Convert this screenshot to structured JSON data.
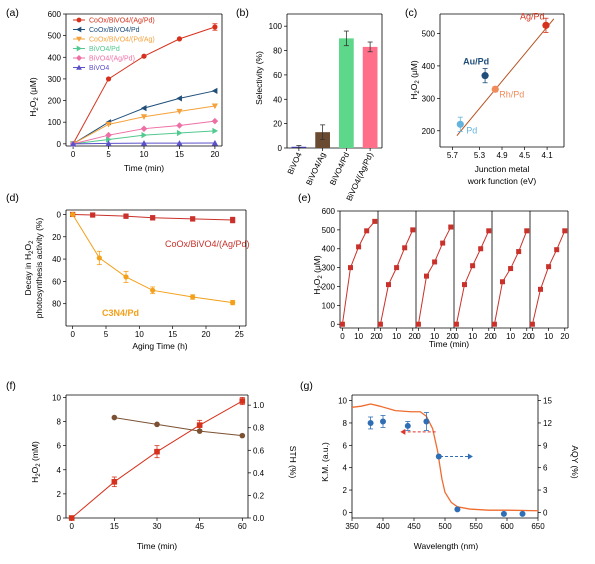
{
  "chart_data": [
    {
      "panel": "(a)",
      "type": "line",
      "xlabel": "Time (min)",
      "ylabel": "H2O2 (μM)",
      "xlim": [
        -1,
        21
      ],
      "ylim": [
        -10,
        600
      ],
      "xticks": [
        0,
        5,
        10,
        15,
        20
      ],
      "yticks": [
        0,
        100,
        200,
        300,
        400,
        500,
        600
      ],
      "legend_position": "top-left",
      "x": [
        0,
        5,
        10,
        15,
        20
      ],
      "series": [
        {
          "name": "CoOx/BiVO4/(Ag/Pd)",
          "values": [
            0,
            300,
            405,
            485,
            540
          ],
          "color": "#d6311c",
          "marker": "circle"
        },
        {
          "name": "CoOx/BiVO4/Pd",
          "values": [
            0,
            100,
            165,
            210,
            245
          ],
          "color": "#1f4e79",
          "marker": "triangle-left"
        },
        {
          "name": "CoOx/BiVO4/(Pd/Ag)",
          "values": [
            0,
            90,
            125,
            150,
            175
          ],
          "color": "#f4a23b",
          "marker": "triangle-down"
        },
        {
          "name": "BiVO4/Pd",
          "values": [
            0,
            20,
            40,
            50,
            60
          ],
          "color": "#52c98e",
          "marker": "triangle-right"
        },
        {
          "name": "BiVO4/(Ag/Pd)",
          "values": [
            0,
            40,
            70,
            85,
            105
          ],
          "color": "#ee6fa5",
          "marker": "diamond"
        },
        {
          "name": "BiVO4",
          "values": [
            0,
            2,
            3,
            3,
            4
          ],
          "color": "#5b52c9",
          "marker": "triangle-up"
        }
      ]
    },
    {
      "panel": "(b)",
      "type": "bar",
      "ylabel": "Selectivity (%)",
      "ylim": [
        0,
        110
      ],
      "yticks": [
        0,
        20,
        40,
        60,
        80,
        100
      ],
      "categories": [
        "BiVO4",
        "BiVO4/Ag",
        "BiVO4/Pd",
        "BiVO4/(Ag/Pd)"
      ],
      "values": [
        1,
        13,
        90,
        83
      ],
      "errors": [
        1,
        6,
        6,
        4
      ],
      "colors": [
        "#3a36a0",
        "#6b4a32",
        "#5dd78a",
        "#ff6f8a"
      ]
    },
    {
      "panel": "(c)",
      "type": "scatter",
      "xlabel": "Junction metal\nwork function (eV)",
      "ylabel": "H2O2 (μM)",
      "xlim": [
        4.15,
        5.25
      ],
      "ylim": [
        150,
        560
      ],
      "xticks": [
        4.26,
        4.5,
        4.7,
        4.9,
        5.1
      ],
      "xticklabels": [
        "5.7",
        "5.3",
        "4.9",
        "4.5",
        "4.1"
      ],
      "yticks": [
        200,
        300,
        400,
        500
      ],
      "points": [
        {
          "label": "Ag/Pd",
          "x": 5.09,
          "y": 525,
          "err": 22,
          "color": "#d6311c"
        },
        {
          "label": "Au/Pd",
          "x": 4.55,
          "y": 370,
          "err": 22,
          "color": "#1f4e79"
        },
        {
          "label": "Rh/Pd",
          "x": 4.64,
          "y": 328,
          "err": 8,
          "color": "#f08c5c"
        },
        {
          "label": "Pd",
          "x": 4.33,
          "y": 220,
          "err": 22,
          "color": "#66b4dc"
        }
      ],
      "fit_line": {
        "x": [
          4.3,
          5.16
        ],
        "y": [
          185,
          545
        ],
        "color": "#b5501e"
      }
    },
    {
      "panel": "(d)",
      "type": "line",
      "xlabel": "Aging Time (h)",
      "ylabel": "Decay in H2O2\nphotosynthesis activity  (%)",
      "xlim": [
        -1,
        26
      ],
      "ylim": [
        -4,
        100
      ],
      "y_inverted": true,
      "xticks": [
        0,
        5,
        10,
        15,
        20,
        25
      ],
      "yticks": [
        0,
        20,
        40,
        60,
        80
      ],
      "series": [
        {
          "name": "CoOx/BiVO4/(Ag/Pd)",
          "x": [
            0,
            3,
            8,
            12,
            18,
            24
          ],
          "values": [
            0,
            0.5,
            1.5,
            3,
            4,
            5
          ],
          "err": [
            1.5,
            1.5,
            2,
            2,
            2,
            2.5
          ],
          "color": "#c9312a",
          "marker": "square"
        },
        {
          "name": "C3N4/Pd",
          "x": [
            0,
            4,
            8,
            12,
            18,
            24
          ],
          "values": [
            0,
            39,
            56,
            68,
            74,
            79
          ],
          "err": [
            1,
            6,
            5,
            3,
            2,
            2
          ],
          "color": "#f3a01a",
          "marker": "circle"
        }
      ]
    },
    {
      "panel": "(e)",
      "type": "line",
      "xlabel": "Time (min)",
      "ylabel": "H2O2 (μM)",
      "ylim": [
        -20,
        600
      ],
      "yticks": [
        0,
        100,
        200,
        300,
        400,
        500,
        600
      ],
      "cycle_xticks": [
        0,
        10,
        20
      ],
      "cycles": [
        {
          "x": [
            0,
            5,
            10,
            15,
            20
          ],
          "values": [
            0,
            300,
            410,
            495,
            545
          ]
        },
        {
          "x": [
            0,
            5,
            10,
            15,
            20
          ],
          "values": [
            0,
            210,
            300,
            405,
            500
          ]
        },
        {
          "x": [
            0,
            5,
            10,
            15,
            20
          ],
          "values": [
            0,
            255,
            330,
            430,
            515
          ]
        },
        {
          "x": [
            0,
            5,
            10,
            15,
            20
          ],
          "values": [
            0,
            210,
            310,
            400,
            495
          ]
        },
        {
          "x": [
            0,
            5,
            10,
            15,
            20
          ],
          "values": [
            0,
            225,
            295,
            385,
            495
          ]
        },
        {
          "x": [
            0,
            5,
            10,
            15,
            20
          ],
          "values": [
            0,
            185,
            305,
            395,
            495
          ]
        }
      ],
      "color": "#c9312a",
      "marker": "square"
    },
    {
      "panel": "(f)",
      "type": "line",
      "xlabel": "Time (min)",
      "ylabel": "H2O2 (mM)",
      "y2label": "STH (%)",
      "xlim": [
        -2,
        62
      ],
      "ylim": [
        0,
        10.2
      ],
      "y2lim": [
        0,
        1.09
      ],
      "xticks": [
        0,
        15,
        30,
        45,
        60
      ],
      "yticks": [
        0,
        2,
        4,
        6,
        8,
        10
      ],
      "y2ticks": [
        0,
        0.2,
        0.4,
        0.6,
        0.8,
        1.0
      ],
      "y2ticklabels": [
        "0.0",
        "0.2",
        "0.4",
        "0.6",
        "0.8",
        "1.0"
      ],
      "series": [
        {
          "name": "H2O2",
          "axis": "left",
          "x": [
            0,
            15,
            30,
            45,
            60
          ],
          "values": [
            0,
            3.0,
            5.5,
            7.7,
            9.7
          ],
          "err": [
            0,
            0.4,
            0.5,
            0.4,
            0.3
          ],
          "color": "#d6311c",
          "marker": "square"
        },
        {
          "name": "STH",
          "axis": "right",
          "x": [
            15,
            30,
            45,
            60
          ],
          "values": [
            0.89,
            0.83,
            0.77,
            0.73
          ],
          "color": "#7b5132",
          "marker": "circle"
        }
      ]
    },
    {
      "panel": "(g)",
      "type": "line",
      "xlabel": "Wavelength (nm)",
      "ylabel": "K.M. (a.u.)",
      "y2label": "AQY (%)",
      "xlim": [
        350,
        650
      ],
      "ylim": [
        -0.5,
        10.5
      ],
      "y2lim": [
        -0.75,
        15.75
      ],
      "xticks": [
        350,
        400,
        450,
        500,
        550,
        600,
        650
      ],
      "yticks": [
        0,
        2,
        4,
        6,
        8,
        10
      ],
      "y2ticks": [
        0,
        3,
        6,
        9,
        12,
        15
      ],
      "series": [
        {
          "name": "K.M.",
          "axis": "left",
          "x": [
            350,
            365,
            380,
            395,
            420,
            445,
            460,
            470,
            480,
            488,
            495,
            500,
            510,
            520,
            540,
            570,
            600,
            650
          ],
          "values": [
            9.4,
            9.5,
            9.7,
            9.5,
            9.1,
            9.0,
            9.0,
            8.6,
            7.5,
            5.5,
            3.0,
            1.8,
            0.9,
            0.5,
            0.3,
            0.2,
            0.2,
            0.15
          ],
          "color": "#ef6c2f"
        },
        {
          "name": "AQY",
          "axis": "right",
          "x": [
            380,
            400,
            440,
            470,
            490,
            520,
            595,
            625
          ],
          "values": [
            12.0,
            12.2,
            11.6,
            12.2,
            7.5,
            0.4,
            -0.2,
            -0.2
          ],
          "err": [
            0.8,
            0.8,
            0.6,
            1.2,
            0,
            0,
            0,
            0
          ],
          "color": "#2f6eb5",
          "marker": "circle"
        }
      ]
    }
  ],
  "panels": {
    "a": {
      "label": "(a)",
      "xlabel": "Time (min)",
      "ylabel_main": "H",
      "ylabel_sub": "2",
      "ylabel_main2": "O",
      "ylabel_sub2": "2",
      "ylabel_rest": " (μM)"
    },
    "b": {
      "label": "(b)",
      "ylabel": "Selectivity (%)"
    },
    "c": {
      "label": "(c)",
      "ylabel_main": "H",
      "ylabel_sub": "2",
      "ylabel_main2": "O",
      "ylabel_sub2": "2",
      "ylabel_rest": " (μM)",
      "xlabel_line1": "Junction metal",
      "xlabel_line2": "work function (eV)"
    },
    "d": {
      "label": "(d)",
      "xlabel": "Aging Time (h)",
      "ylabel_line1_main": "Decay in H",
      "ylabel_line1_sub": "2",
      "ylabel_line1_main2": "O",
      "ylabel_line1_sub2": "2",
      "ylabel_line2": "photosynthesis activity  (%)",
      "ann_top": "CoOx/BiVO4/(Ag/Pd)",
      "ann_bottom": "C3N4/Pd"
    },
    "e": {
      "label": "(e)",
      "xlabel": "Time (min)",
      "ylabel_main": "H",
      "ylabel_sub": "2",
      "ylabel_main2": "O",
      "ylabel_sub2": "2",
      "ylabel_rest": " (μM)"
    },
    "f": {
      "label": "(f)",
      "xlabel": "Time (min)",
      "ylabel_main": "H",
      "ylabel_sub": "2",
      "ylabel_main2": "O",
      "ylabel_sub2": "2",
      "ylabel_rest": " (mM)",
      "y2label": "STH (%)"
    },
    "g": {
      "label": "(g)",
      "xlabel": "Wavelength (nm)",
      "ylabel": "K.M. (a.u.)",
      "y2label": "AQY (%)"
    }
  }
}
